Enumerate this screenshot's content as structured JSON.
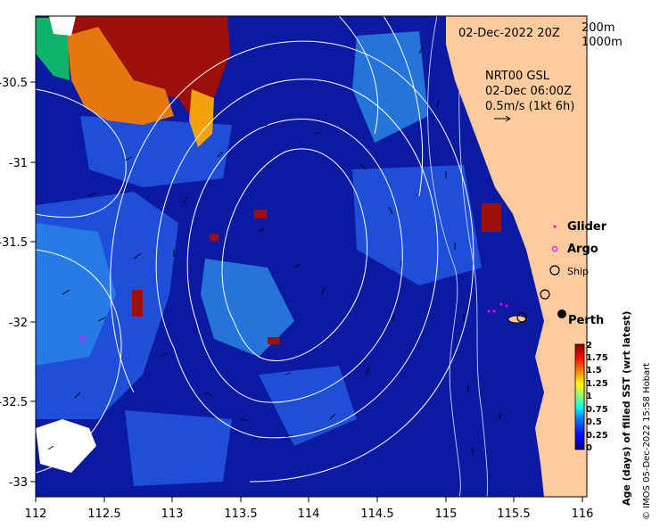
{
  "map": {
    "date_label": "02-Dec-2022 20Z",
    "isobath_labels": [
      "200m",
      "1000m"
    ],
    "current_source": "NRT00 GSL",
    "current_time": "02-Dec 06:00Z",
    "current_scale": "0.5m/s (1kt 6h)",
    "place_label": "Perth",
    "x_ticks": [
      "112",
      "112.5",
      "113",
      "113.5",
      "114",
      "114.5",
      "115",
      "115.5",
      "116"
    ],
    "y_ticks": [
      "-30.5",
      "-31",
      "-31.5",
      "-32",
      "-32.5",
      "-33"
    ]
  },
  "legend": {
    "glider": "Glider",
    "argo": "Argo",
    "ship": "Ship",
    "glider_color": "#ff00ff",
    "argo_color": "#ff00ff"
  },
  "colorbar": {
    "title": "Age (days) of filled SST (wrt latest)",
    "ticks": [
      "2",
      "1.75",
      "1.5",
      "1.25",
      "1",
      "0.75",
      "0.5",
      "0.25",
      "0"
    ],
    "colors": [
      "#00007f",
      "#0000ff",
      "#007fff",
      "#00ffff",
      "#7fff7f",
      "#ffff00",
      "#ff7f00",
      "#ff0000",
      "#7f0000"
    ]
  },
  "credit": "© IMOS 05-Dec-2022 15:58 Hobart",
  "colors": {
    "land": "#fdcb9c",
    "deep_blue": "#0b1aa0",
    "mid_blue": "#1f4fd8",
    "light_blue": "#2a8be8",
    "orange": "#e4770f",
    "dark_red": "#9b1008"
  }
}
